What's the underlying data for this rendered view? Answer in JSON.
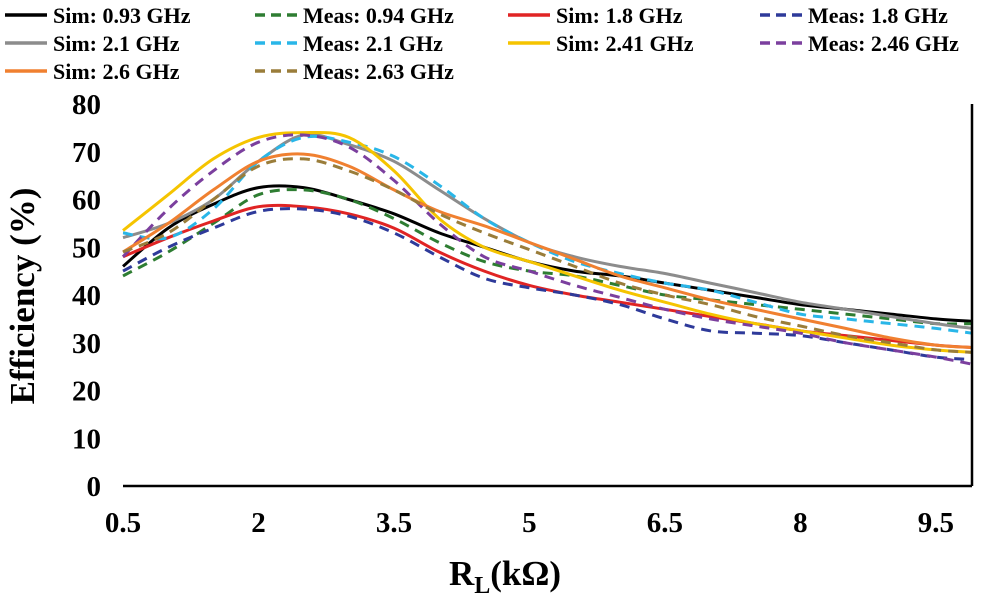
{
  "chart_data": {
    "type": "line",
    "title": "",
    "xlabel": "R",
    "xlabel_sub": "L",
    "xlabel_unit": "(kΩ)",
    "ylabel": "Efficiency (%)",
    "xlim": [
      0.5,
      9.9
    ],
    "ylim": [
      0,
      80
    ],
    "x_ticks": [
      0.5,
      2,
      3.5,
      5,
      6.5,
      8,
      9.5
    ],
    "x_tick_labels": [
      "0.5",
      "2",
      "3.5",
      "5",
      "6.5",
      "8",
      "9.5"
    ],
    "y_ticks": [
      0,
      10,
      20,
      30,
      40,
      50,
      60,
      70,
      80
    ],
    "y_tick_labels": [
      "0",
      "10",
      "20",
      "30",
      "40",
      "50",
      "60",
      "70",
      "80"
    ],
    "grid": false,
    "legend_position": "top",
    "series": [
      {
        "name": "Sim: 0.93 GHz",
        "color": "#000000",
        "dash": "solid",
        "x": [
          0.5,
          1,
          1.5,
          2,
          2.5,
          3,
          3.5,
          4,
          4.5,
          5,
          5.5,
          6,
          6.5,
          7,
          7.5,
          8,
          8.5,
          9,
          9.5,
          9.9
        ],
        "y": [
          46,
          54,
          59,
          62.5,
          62.5,
          60,
          57,
          53,
          50,
          47,
          45,
          44,
          42.5,
          41,
          39.5,
          38,
          37,
          36,
          35,
          34.5
        ]
      },
      {
        "name": "Meas: 0.94 GHz",
        "color": "#2e7d32",
        "dash": "dashed",
        "x": [
          0.5,
          1,
          1.5,
          2,
          2.5,
          3,
          3.5,
          4,
          4.5,
          5,
          5.5,
          6,
          6.5,
          7,
          7.5,
          8,
          8.5,
          9,
          9.5,
          9.9
        ],
        "y": [
          44,
          49,
          55,
          61,
          62,
          60,
          56,
          51,
          47,
          45,
          44,
          42,
          40,
          39,
          38,
          37,
          36,
          35,
          34,
          34
        ]
      },
      {
        "name": "Sim: 1.8 GHz",
        "color": "#e02424",
        "dash": "solid",
        "x": [
          0.5,
          1,
          1.5,
          2,
          2.5,
          3,
          3.5,
          4,
          4.5,
          5,
          5.5,
          6,
          6.5,
          7,
          7.5,
          8,
          8.5,
          9,
          9.5,
          9.9
        ],
        "y": [
          48,
          52,
          55.5,
          58.5,
          58.5,
          57,
          54,
          49,
          45,
          42,
          40,
          38.5,
          37,
          35.5,
          34,
          32.5,
          31.5,
          30.5,
          29.5,
          29
        ]
      },
      {
        "name": "Meas: 1.8 GHz",
        "color": "#2e3a9a",
        "dash": "dashed",
        "x": [
          0.5,
          1,
          1.5,
          2,
          2.5,
          3,
          3.5,
          4,
          4.5,
          5,
          5.5,
          6,
          6.5,
          7,
          7.5,
          8,
          8.5,
          9,
          9.5,
          9.9
        ],
        "y": [
          45,
          50,
          54,
          57.5,
          58,
          56.5,
          53,
          48,
          43.5,
          41.5,
          40,
          38,
          35,
          32.5,
          32,
          31.5,
          30,
          28.5,
          27,
          26.5
        ]
      },
      {
        "name": "Sim: 2.1 GHz",
        "color": "#8c8c8c",
        "dash": "solid",
        "x": [
          0.5,
          1,
          1.5,
          2,
          2.5,
          3,
          3.5,
          4,
          4.5,
          5,
          5.5,
          6,
          6.5,
          7,
          7.5,
          8,
          8.5,
          9,
          9.5,
          9.9
        ],
        "y": [
          52,
          55,
          60,
          68,
          73.5,
          71.5,
          68,
          62,
          56,
          51,
          48,
          46,
          44.5,
          42.5,
          40.5,
          38.5,
          37,
          35.5,
          34,
          33
        ]
      },
      {
        "name": "Meas: 2.1 GHz",
        "color": "#29b6e8",
        "dash": "dashed",
        "x": [
          0.5,
          1,
          1.5,
          2,
          2.5,
          3,
          3.5,
          4,
          4.5,
          5,
          5.5,
          6,
          6.5,
          7,
          7.5,
          8,
          8.5,
          9,
          9.5,
          9.9
        ],
        "y": [
          53,
          52,
          58,
          68,
          73,
          72,
          69,
          63,
          56,
          51,
          47,
          44.5,
          42.5,
          41,
          38.5,
          36,
          35,
          34,
          33,
          32
        ]
      },
      {
        "name": "Sim: 2.41 GHz",
        "color": "#f5c400",
        "dash": "solid",
        "x": [
          0.5,
          1,
          1.5,
          2,
          2.5,
          3,
          3.5,
          4,
          4.5,
          5,
          5.5,
          6,
          6.5,
          7,
          7.5,
          8,
          8.5,
          9,
          9.5,
          9.9
        ],
        "y": [
          53.5,
          61,
          68.5,
          73,
          74,
          73,
          66,
          56,
          50,
          47,
          44,
          41,
          38.5,
          36,
          34,
          32.5,
          31,
          29.5,
          28.5,
          28
        ]
      },
      {
        "name": "Meas: 2.46 GHz",
        "color": "#7b3f9e",
        "dash": "dashed",
        "x": [
          0.5,
          1,
          1.5,
          2,
          2.5,
          3,
          3.5,
          4,
          4.5,
          5,
          5.5,
          6,
          6.5,
          7,
          7.5,
          8,
          8.5,
          9,
          9.5,
          9.9
        ],
        "y": [
          48,
          58,
          66,
          72,
          73.5,
          71,
          64,
          55,
          48,
          45,
          42,
          39.5,
          37,
          35,
          33.5,
          32,
          30,
          28.5,
          27,
          25.5
        ]
      },
      {
        "name": "Sim: 2.6 GHz",
        "color": "#f08030",
        "dash": "solid",
        "x": [
          0.5,
          1,
          1.5,
          2,
          2.5,
          3,
          3.5,
          4,
          4.5,
          5,
          5.5,
          6,
          6.5,
          7,
          7.5,
          8,
          8.5,
          9,
          9.5,
          9.9
        ],
        "y": [
          49,
          55,
          62,
          68,
          69.5,
          67,
          62,
          57.5,
          54.5,
          51,
          47.5,
          44,
          41.5,
          39,
          37,
          35,
          33,
          31,
          29.5,
          29
        ]
      },
      {
        "name": "Meas: 2.63 GHz",
        "color": "#9a7d3a",
        "dash": "dashed",
        "x": [
          0.5,
          1,
          1.5,
          2,
          2.5,
          3,
          3.5,
          4,
          4.5,
          5,
          5.5,
          6,
          6.5,
          7,
          7.5,
          8,
          8.5,
          9,
          9.5,
          9.9
        ],
        "y": [
          49,
          53,
          60,
          67,
          68.5,
          66,
          62,
          57,
          53,
          49.5,
          46,
          42.5,
          40,
          38,
          35.5,
          33.5,
          31.5,
          30,
          28.5,
          28
        ]
      }
    ]
  }
}
